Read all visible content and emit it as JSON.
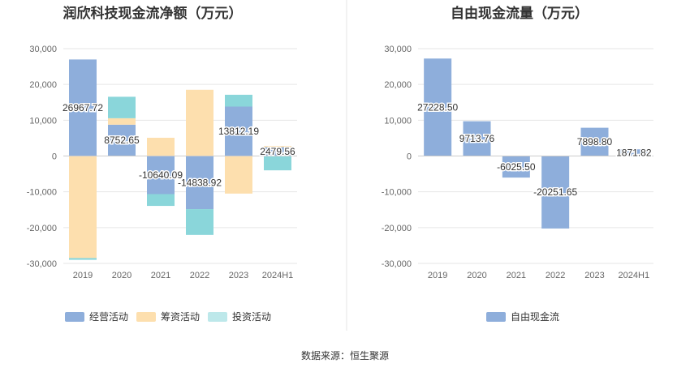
{
  "chart_data": [
    {
      "type": "bar",
      "stacked": true,
      "title": "润欣科技现金流净额（万元）",
      "categories": [
        "2019",
        "2020",
        "2021",
        "2022",
        "2023",
        "2024H1"
      ],
      "ylim": [
        -30000,
        30000
      ],
      "yticks": [
        "30,000",
        "20,000",
        "10,000",
        "0",
        "-10,000",
        "-20,000",
        "-30,000"
      ],
      "grid": true,
      "legend_position": "bottom",
      "series": [
        {
          "name": "经营活动",
          "color": "#8eaedb",
          "values": [
            26967.72,
            8752.65,
            -10640.09,
            -14838.92,
            13812.19,
            2479.56
          ]
        },
        {
          "name": "筹资活动",
          "color": "#fddfae",
          "values": [
            -28500,
            1800,
            5100,
            18500,
            -10500,
            300
          ]
        },
        {
          "name": "投资活动",
          "color": "#8ad6da",
          "values": [
            -500,
            6000,
            -3300,
            -7200,
            3300,
            -4000
          ]
        }
      ],
      "data_labels": [
        "26967.72",
        "8752.65",
        "-10640.09",
        "-14838.92",
        "13812.19",
        "2479.56"
      ]
    },
    {
      "type": "bar",
      "title": "自由现金流量（万元）",
      "categories": [
        "2019",
        "2020",
        "2021",
        "2022",
        "2023",
        "2024H1"
      ],
      "ylim": [
        -30000,
        30000
      ],
      "yticks": [
        "30,000",
        "20,000",
        "10,000",
        "0",
        "-10,000",
        "-20,000",
        "-30,000"
      ],
      "grid": true,
      "legend_position": "bottom",
      "series": [
        {
          "name": "自由现金流",
          "color": "#8eaedb",
          "values": [
            27228.5,
            9713.76,
            -6025.5,
            -20251.65,
            7898.8,
            1871.82
          ]
        }
      ],
      "data_labels": [
        "27228.50",
        "9713.76",
        "-6025.50",
        "-20251.65",
        "7898.80",
        "1871.82"
      ]
    }
  ],
  "source": "数据来源：恒生聚源",
  "colors": {
    "divider": "#e6e6e6",
    "grid": "#e6e6e6",
    "axis": "#cccccc"
  }
}
